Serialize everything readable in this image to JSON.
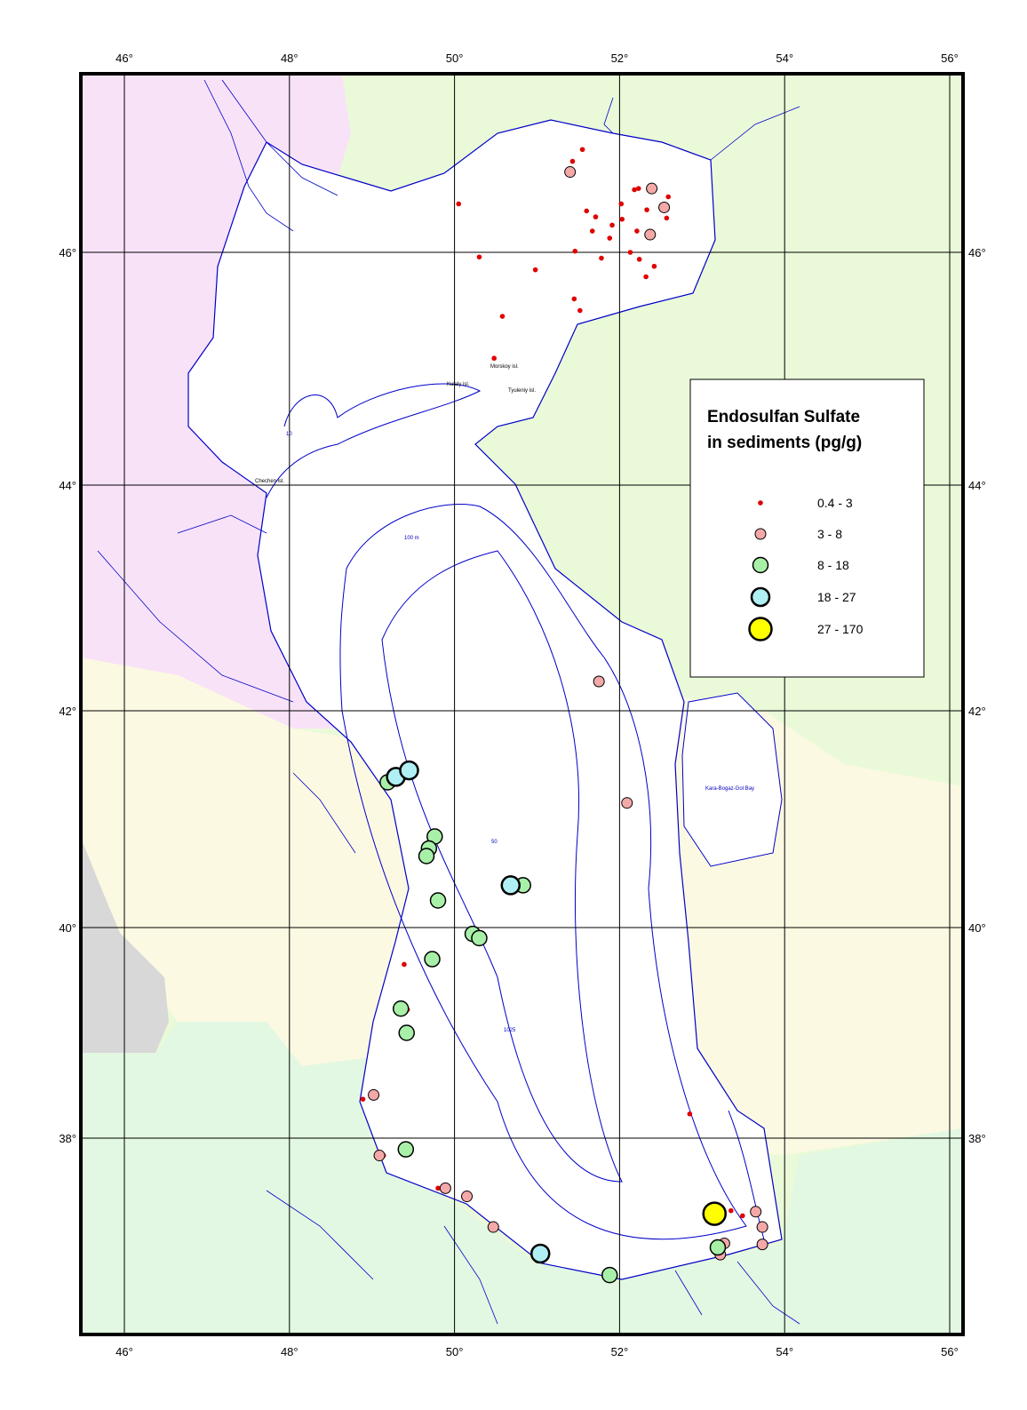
{
  "chart_data": {
    "type": "scatter",
    "title": "Endosulfan Sulfate in sediments (pg/g)",
    "title_lines": [
      "Endosulfan Sulfate",
      "in sediments (pg/g)"
    ],
    "x_ticks": [
      "46°",
      "48°",
      "50°",
      "52°",
      "54°",
      "56°"
    ],
    "y_ticks": [
      "46°",
      "44°",
      "42°",
      "40°",
      "38°"
    ],
    "x_tick_values": [
      46,
      48,
      50,
      52,
      54,
      56
    ],
    "y_tick_values": [
      46,
      44,
      42,
      40,
      38
    ],
    "xlim": [
      45.5,
      56.2
    ],
    "ylim": [
      36.2,
      47.5
    ],
    "grid": true,
    "legend_placement": "right",
    "classes": [
      {
        "label": "0.4 - 3",
        "color": "#e00000"
      },
      {
        "label": "3 - 8",
        "color": "#f4a8a8"
      },
      {
        "label": "8 - 18",
        "color": "#a8f0a8"
      },
      {
        "label": "18 - 27",
        "color": "#b0f0f4"
      },
      {
        "label": "27 - 170",
        "color": "#ffff00"
      }
    ],
    "points": [
      {
        "lon": 51.55,
        "lat": 46.87,
        "c": 0
      },
      {
        "lon": 51.43,
        "lat": 46.77,
        "c": 0
      },
      {
        "lon": 51.6,
        "lat": 46.35,
        "c": 0
      },
      {
        "lon": 51.71,
        "lat": 46.3,
        "c": 0
      },
      {
        "lon": 51.67,
        "lat": 46.18,
        "c": 0
      },
      {
        "lon": 51.91,
        "lat": 46.23,
        "c": 0
      },
      {
        "lon": 52.02,
        "lat": 46.41,
        "c": 0
      },
      {
        "lon": 52.03,
        "lat": 46.28,
        "c": 0
      },
      {
        "lon": 52.18,
        "lat": 46.53,
        "c": 0
      },
      {
        "lon": 52.23,
        "lat": 46.54,
        "c": 0
      },
      {
        "lon": 52.33,
        "lat": 46.36,
        "c": 0
      },
      {
        "lon": 52.59,
        "lat": 46.47,
        "c": 0
      },
      {
        "lon": 52.57,
        "lat": 46.29,
        "c": 0
      },
      {
        "lon": 52.21,
        "lat": 46.18,
        "c": 0
      },
      {
        "lon": 51.88,
        "lat": 46.12,
        "c": 0
      },
      {
        "lon": 52.13,
        "lat": 46.0,
        "c": 0
      },
      {
        "lon": 51.46,
        "lat": 46.01,
        "c": 0
      },
      {
        "lon": 51.78,
        "lat": 45.95,
        "c": 0
      },
      {
        "lon": 52.24,
        "lat": 45.94,
        "c": 0
      },
      {
        "lon": 52.42,
        "lat": 45.88,
        "c": 0
      },
      {
        "lon": 52.32,
        "lat": 45.79,
        "c": 0
      },
      {
        "lon": 50.05,
        "lat": 46.41,
        "c": 0
      },
      {
        "lon": 50.3,
        "lat": 45.96,
        "c": 0
      },
      {
        "lon": 50.98,
        "lat": 45.85,
        "c": 0
      },
      {
        "lon": 51.45,
        "lat": 45.6,
        "c": 0
      },
      {
        "lon": 51.52,
        "lat": 45.5,
        "c": 0
      },
      {
        "lon": 50.58,
        "lat": 45.45,
        "c": 0
      },
      {
        "lon": 50.48,
        "lat": 45.09,
        "c": 0
      },
      {
        "lon": 49.39,
        "lat": 39.65,
        "c": 0
      },
      {
        "lon": 49.43,
        "lat": 39.22,
        "c": 0
      },
      {
        "lon": 48.89,
        "lat": 38.37,
        "c": 0
      },
      {
        "lon": 49.14,
        "lat": 37.83,
        "c": 0
      },
      {
        "lon": 49.8,
        "lat": 37.51,
        "c": 0
      },
      {
        "lon": 51.0,
        "lat": 36.81,
        "c": 0
      },
      {
        "lon": 52.85,
        "lat": 38.23,
        "c": 0
      },
      {
        "lon": 53.35,
        "lat": 37.29,
        "c": 0
      },
      {
        "lon": 53.49,
        "lat": 37.24,
        "c": 0
      },
      {
        "lon": 51.4,
        "lat": 46.68,
        "c": 1
      },
      {
        "lon": 52.39,
        "lat": 46.54,
        "c": 1
      },
      {
        "lon": 52.54,
        "lat": 46.38,
        "c": 1
      },
      {
        "lon": 52.37,
        "lat": 46.15,
        "c": 1
      },
      {
        "lon": 51.75,
        "lat": 42.26,
        "c": 1
      },
      {
        "lon": 52.09,
        "lat": 41.15,
        "c": 1
      },
      {
        "lon": 49.02,
        "lat": 38.41,
        "c": 1
      },
      {
        "lon": 49.09,
        "lat": 37.83,
        "c": 1
      },
      {
        "lon": 49.89,
        "lat": 37.51,
        "c": 1
      },
      {
        "lon": 50.15,
        "lat": 37.43,
        "c": 1
      },
      {
        "lon": 50.47,
        "lat": 37.13,
        "c": 1
      },
      {
        "lon": 51.02,
        "lat": 36.83,
        "c": 1
      },
      {
        "lon": 53.65,
        "lat": 37.28,
        "c": 1
      },
      {
        "lon": 53.73,
        "lat": 37.13,
        "c": 1
      },
      {
        "lon": 53.27,
        "lat": 36.97,
        "c": 1
      },
      {
        "lon": 53.73,
        "lat": 36.96,
        "c": 1
      },
      {
        "lon": 53.22,
        "lat": 36.86,
        "c": 1
      },
      {
        "lon": 49.19,
        "lat": 41.34,
        "c": 2
      },
      {
        "lon": 49.76,
        "lat": 40.84,
        "c": 2
      },
      {
        "lon": 49.69,
        "lat": 40.73,
        "c": 2
      },
      {
        "lon": 49.66,
        "lat": 40.66,
        "c": 2
      },
      {
        "lon": 49.8,
        "lat": 40.25,
        "c": 2
      },
      {
        "lon": 50.22,
        "lat": 39.94,
        "c": 2
      },
      {
        "lon": 50.3,
        "lat": 39.9,
        "c": 2
      },
      {
        "lon": 49.73,
        "lat": 39.7,
        "c": 2
      },
      {
        "lon": 49.35,
        "lat": 39.23,
        "c": 2
      },
      {
        "lon": 49.42,
        "lat": 39.0,
        "c": 2
      },
      {
        "lon": 49.41,
        "lat": 37.89,
        "c": 2
      },
      {
        "lon": 51.88,
        "lat": 36.66,
        "c": 2
      },
      {
        "lon": 50.83,
        "lat": 40.39,
        "c": 2
      },
      {
        "lon": 53.19,
        "lat": 36.93,
        "c": 2
      },
      {
        "lon": 49.29,
        "lat": 41.39,
        "c": 3
      },
      {
        "lon": 49.45,
        "lat": 41.45,
        "c": 3
      },
      {
        "lon": 50.68,
        "lat": 40.39,
        "c": 3
      },
      {
        "lon": 51.04,
        "lat": 36.87,
        "c": 3
      },
      {
        "lon": 53.15,
        "lat": 37.26,
        "c": 4
      }
    ]
  },
  "map_labels": {
    "morskoy": "Morskoy isl.",
    "kulaly": "Kulaly isl.",
    "tyuleniy": "Tyuleniy isl.",
    "chechen": "Chechen isl.",
    "karabogaz": "Kara-Bogaz-Gol Bay",
    "depth_100": "100 m",
    "depth_1025": "1025",
    "depth_50": "50",
    "depth_10": "10"
  },
  "colors": {
    "russia": "#f8e2f8",
    "kazakhstan": "#eafad8",
    "turkmenistan": "#fcf9e2",
    "azerbaijan": "#fcf9e2",
    "iran": "#e2f8e2",
    "armenia": "#d8d8d8",
    "water_lines": "#0000c8"
  }
}
